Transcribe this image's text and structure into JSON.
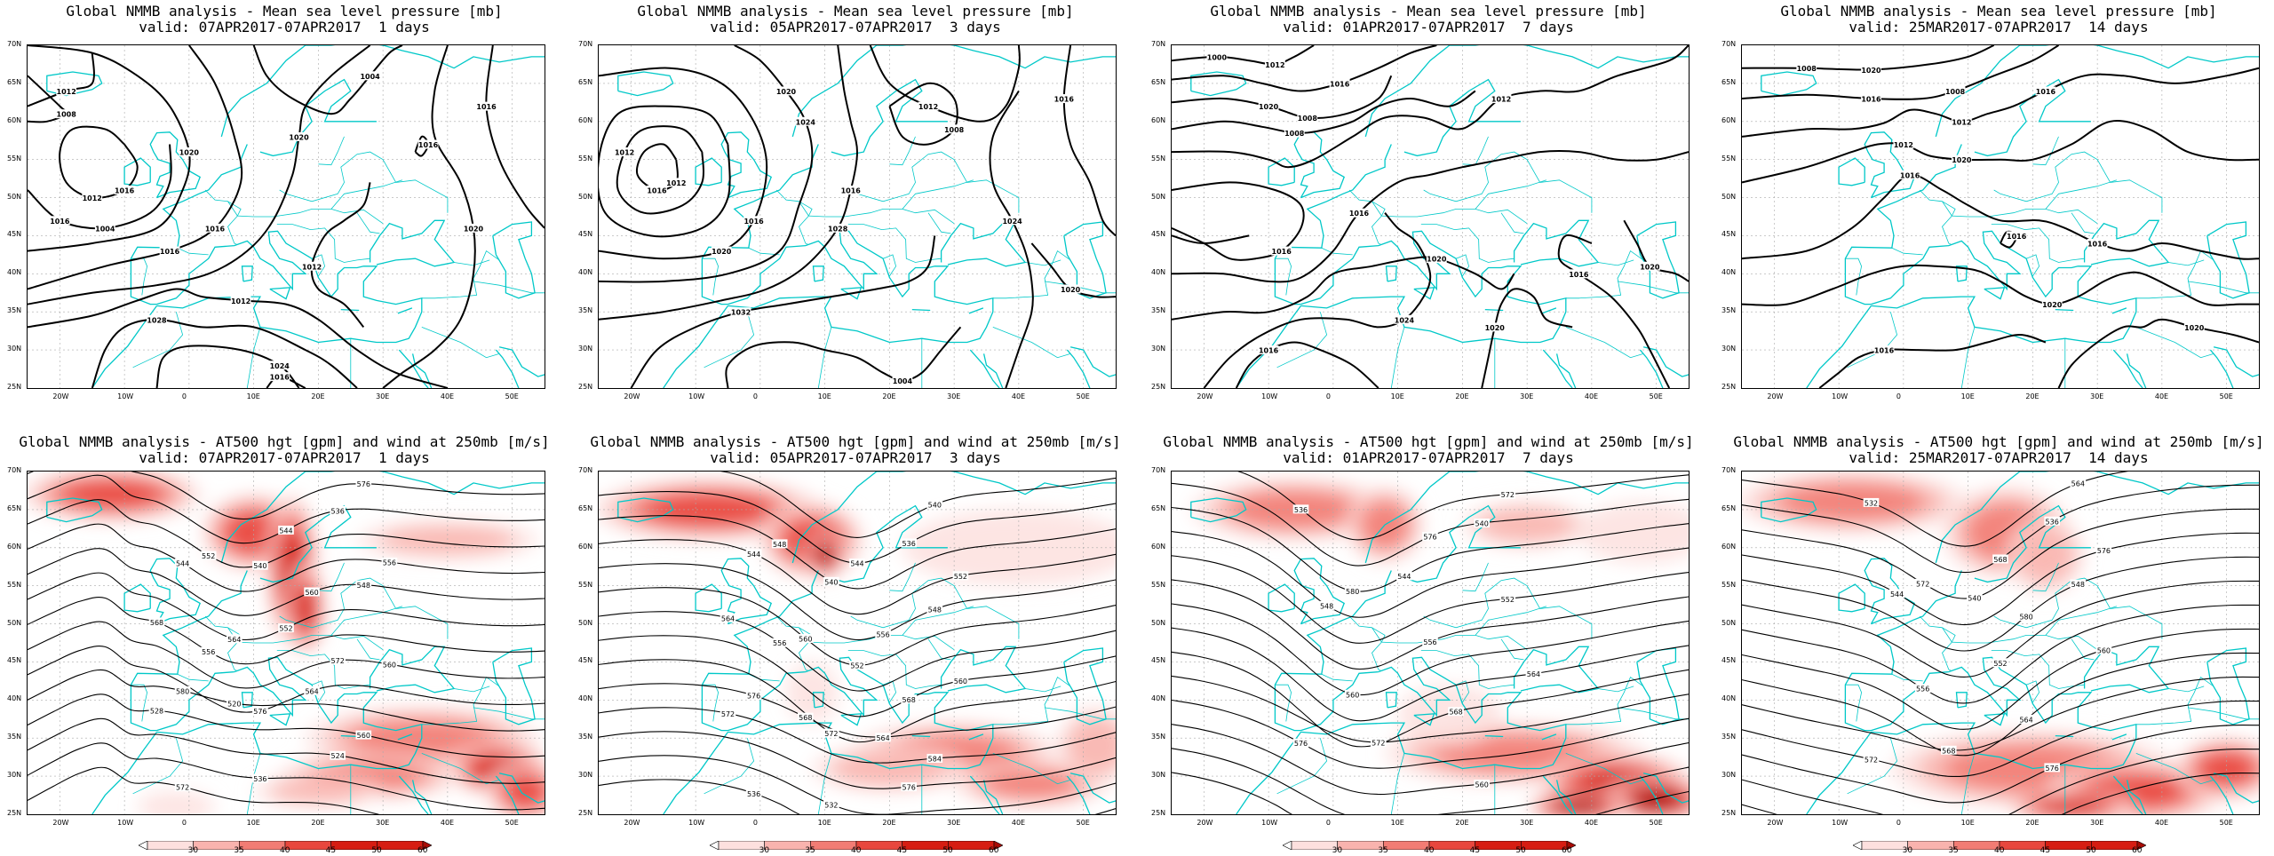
{
  "panels": [
    {
      "title_line1": "Global NMMB analysis - Mean sea level pressure [mb]",
      "title_line2": "valid: 07APR2017-07APR2017  1 days",
      "kind": "mslp",
      "contour_labels": [
        "1016",
        "1004",
        "1008",
        "1016",
        "1020",
        "1012",
        "1028",
        "1024",
        "1016",
        "1020",
        "1016",
        "1012",
        "1008",
        "1012",
        "1004",
        "1016",
        "1012",
        "1016",
        "1020",
        "1016"
      ]
    },
    {
      "title_line1": "Global NMMB analysis - Mean sea level pressure [mb]",
      "title_line2": "valid: 05APR2017-07APR2017  3 days",
      "kind": "mslp",
      "contour_labels": [
        "1012",
        "1008",
        "1016",
        "1020",
        "1024",
        "1028",
        "1032",
        "1004",
        "1008",
        "1012",
        "1016",
        "1024",
        "1020",
        "1016",
        "1012",
        "1008",
        "1016",
        "1020",
        "1016"
      ]
    },
    {
      "title_line1": "Global NMMB analysis - Mean sea level pressure [mb]",
      "title_line2": "valid: 01APR2017-07APR2017  7 days",
      "kind": "mslp",
      "contour_labels": [
        "1000",
        "1004",
        "1008",
        "1008",
        "1012",
        "1016",
        "1016",
        "1020",
        "1024",
        "1016",
        "1020",
        "1016",
        "1020",
        "1016",
        "1012",
        "1016",
        "1020"
      ]
    },
    {
      "title_line1": "Global NMMB analysis - Mean sea level pressure [mb]",
      "title_line2": "valid: 25MAR2017-07APR2017  14 days",
      "kind": "mslp",
      "contour_labels": [
        "1008",
        "1008",
        "1012",
        "1012",
        "1016",
        "1020",
        "1016",
        "1020",
        "1016",
        "1020",
        "1016",
        "1016",
        "1020",
        "1016"
      ]
    },
    {
      "title_line1": "Global NMMB analysis - AT500 hgt [gpm] and wind at 250mb [m/s]",
      "title_line2": "valid: 07APR2017-07APR2017  1 days",
      "kind": "z500",
      "contour_labels": [
        "532",
        "536",
        "540",
        "544",
        "548",
        "552",
        "556",
        "560",
        "564",
        "520",
        "528",
        "524",
        "536",
        "572",
        "576",
        "544",
        "552",
        "556",
        "560",
        "564",
        "568",
        "572",
        "576",
        "580",
        "560"
      ]
    },
    {
      "title_line1": "Global NMMB analysis - AT500 hgt [gpm] and wind at 250mb [m/s]",
      "title_line2": "valid: 05APR2017-07APR2017  3 days",
      "kind": "z500",
      "contour_labels": [
        "532",
        "536",
        "540",
        "544",
        "548",
        "552",
        "556",
        "560",
        "564",
        "568",
        "572",
        "576",
        "532",
        "536",
        "540",
        "544",
        "548",
        "552",
        "556",
        "560",
        "564",
        "568",
        "572",
        "576",
        "584"
      ]
    },
    {
      "title_line1": "Global NMMB analysis - AT500 hgt [gpm] and wind at 250mb [m/s]",
      "title_line2": "valid: 01APR2017-07APR2017  7 days",
      "kind": "z500",
      "contour_labels": [
        "536",
        "540",
        "544",
        "548",
        "552",
        "556",
        "560",
        "564",
        "568",
        "572",
        "576",
        "560",
        "564",
        "568",
        "572",
        "576",
        "580"
      ]
    },
    {
      "title_line1": "Global NMMB analysis - AT500 hgt [gpm] and wind at 250mb [m/s]",
      "title_line2": "valid: 25MAR2017-07APR2017  14 days",
      "kind": "z500",
      "contour_labels": [
        "532",
        "536",
        "540",
        "544",
        "548",
        "552",
        "556",
        "560",
        "564",
        "568",
        "572",
        "576",
        "580",
        "560",
        "564",
        "568",
        "572",
        "576",
        "580"
      ]
    }
  ],
  "axes": {
    "lon_labels": [
      "20W",
      "10W",
      "0",
      "10E",
      "20E",
      "30E",
      "40E",
      "50E"
    ],
    "lat_labels": [
      "70N",
      "65N",
      "60N",
      "55N",
      "50N",
      "45N",
      "40N",
      "35N",
      "30N",
      "25N"
    ]
  },
  "colorbar": {
    "labels": [
      "30",
      "35",
      "40",
      "45",
      "50",
      "60"
    ],
    "colors": [
      "#ffffff",
      "#fde0de",
      "#f9b3ae",
      "#f27c74",
      "#e8473d",
      "#d61d12",
      "#a80b04"
    ]
  },
  "colors": {
    "contour": "#000000",
    "coast": "#00c8c8",
    "grid": "#aaaaaa"
  }
}
